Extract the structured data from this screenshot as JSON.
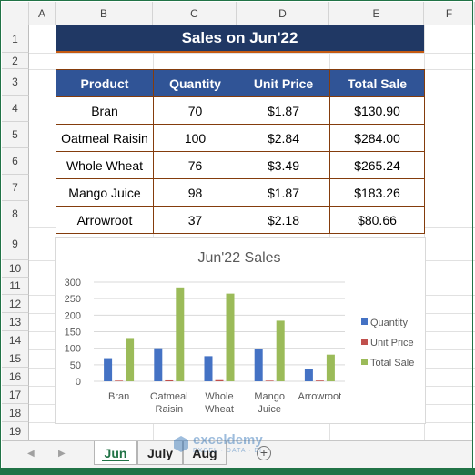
{
  "columns": [
    "A",
    "B",
    "C",
    "D",
    "E",
    "F"
  ],
  "rows": [
    "1",
    "2",
    "3",
    "4",
    "5",
    "6",
    "7",
    "8",
    "9",
    "10",
    "11",
    "12",
    "13",
    "14",
    "15",
    "16",
    "17",
    "18",
    "19"
  ],
  "title": "Sales on Jun'22",
  "table": {
    "headers": [
      "Product",
      "Quantity",
      "Unit Price",
      "Total Sale"
    ],
    "rows": [
      [
        "Bran",
        "70",
        "$1.87",
        "$130.90"
      ],
      [
        "Oatmeal Raisin",
        "100",
        "$2.84",
        "$284.00"
      ],
      [
        "Whole Wheat",
        "76",
        "$3.49",
        "$265.24"
      ],
      [
        "Mango Juice",
        "98",
        "$1.87",
        "$183.26"
      ],
      [
        "Arrowroot",
        "37",
        "$2.18",
        "$80.66"
      ]
    ]
  },
  "chart_data": {
    "type": "bar",
    "title": "Jun'22 Sales",
    "categories": [
      [
        "Bran"
      ],
      [
        "Oatmeal",
        "Raisin"
      ],
      [
        "Whole",
        "Wheat"
      ],
      [
        "Mango",
        "Juice"
      ],
      [
        "Arrowroot"
      ]
    ],
    "series": [
      {
        "name": "Quantity",
        "color": "#4472c4",
        "values": [
          70,
          100,
          76,
          98,
          37
        ]
      },
      {
        "name": "Unit Price",
        "color": "#c0504d",
        "values": [
          1.87,
          2.84,
          3.49,
          1.87,
          2.18
        ]
      },
      {
        "name": "Total Sale",
        "color": "#9bbb59",
        "values": [
          130.9,
          284.0,
          265.24,
          183.26,
          80.66
        ]
      }
    ],
    "yticks": [
      "0",
      "50",
      "100",
      "150",
      "200",
      "250",
      "300"
    ],
    "ylim": [
      0,
      300
    ],
    "grid": true,
    "legend": "right"
  },
  "sheets": {
    "tabs": [
      "Jun",
      "July",
      "Aug"
    ],
    "active": "Jun"
  },
  "watermark": {
    "name": "exceldemy",
    "sub": "EXCEL · DATA · BI"
  }
}
